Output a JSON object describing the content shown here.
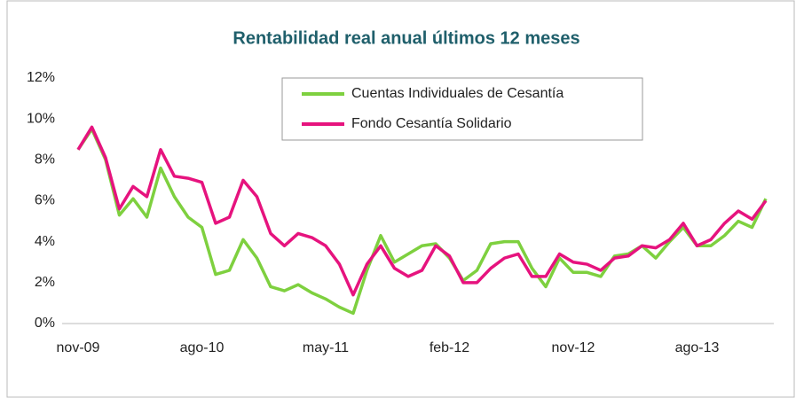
{
  "chart_data": {
    "type": "line",
    "title": "Rentabilidad real anual últimos 12 meses",
    "categories": [
      "nov-09",
      null,
      null,
      null,
      null,
      null,
      null,
      null,
      null,
      "ago-10",
      null,
      null,
      null,
      null,
      null,
      null,
      null,
      null,
      "may-11",
      null,
      null,
      null,
      null,
      null,
      null,
      null,
      null,
      "feb-12",
      null,
      null,
      null,
      null,
      null,
      null,
      null,
      null,
      "nov-12",
      null,
      null,
      null,
      null,
      null,
      null,
      null,
      null,
      "ago-13",
      null,
      null,
      null,
      null,
      null
    ],
    "series": [
      {
        "name": "Cuentas Individuales de Cesantía",
        "color": "#7ed03f",
        "values": [
          8.5,
          9.5,
          8.0,
          5.3,
          6.1,
          5.2,
          7.6,
          6.2,
          5.2,
          4.7,
          2.4,
          2.6,
          4.1,
          3.2,
          1.8,
          1.6,
          1.9,
          1.5,
          1.2,
          0.8,
          0.5,
          2.6,
          4.3,
          3.0,
          3.4,
          3.8,
          3.9,
          3.2,
          2.1,
          2.6,
          3.9,
          4.0,
          4.0,
          2.7,
          1.8,
          3.2,
          2.5,
          2.5,
          2.3,
          3.3,
          3.4,
          3.8,
          3.2,
          4.0,
          4.7,
          3.8,
          3.8,
          4.3,
          5.0,
          4.7,
          6.1
        ]
      },
      {
        "name": "Fondo Cesantía Solidario",
        "color": "#e6137e",
        "values": [
          8.5,
          9.6,
          8.1,
          5.6,
          6.7,
          6.2,
          8.5,
          7.2,
          7.1,
          6.9,
          4.9,
          5.2,
          7.0,
          6.2,
          4.4,
          3.8,
          4.4,
          4.2,
          3.8,
          2.9,
          1.4,
          2.9,
          3.8,
          2.7,
          2.3,
          2.6,
          3.8,
          3.3,
          2.0,
          2.0,
          2.7,
          3.2,
          3.4,
          2.3,
          2.3,
          3.4,
          3.0,
          2.9,
          2.6,
          3.2,
          3.3,
          3.8,
          3.7,
          4.1,
          4.9,
          3.8,
          4.1,
          4.9,
          5.5,
          5.1,
          6.0
        ]
      }
    ],
    "ylim": [
      0,
      12
    ],
    "yticks": [
      {
        "value": 0,
        "label": "0%"
      },
      {
        "value": 2,
        "label": "2%"
      },
      {
        "value": 4,
        "label": "4%"
      },
      {
        "value": 6,
        "label": "6%"
      },
      {
        "value": 8,
        "label": "8%"
      },
      {
        "value": 10,
        "label": "10%"
      },
      {
        "value": 12,
        "label": "12%"
      }
    ],
    "grid": false
  }
}
